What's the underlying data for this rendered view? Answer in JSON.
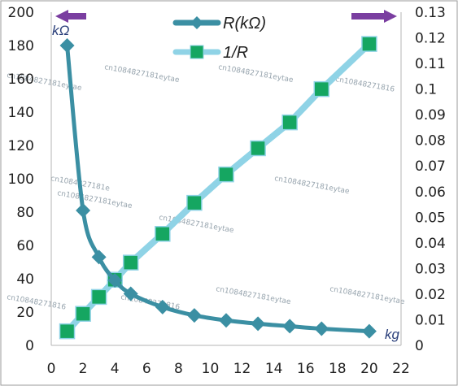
{
  "chart_data": {
    "type": "line",
    "x": [
      1,
      2,
      3,
      4,
      5,
      7,
      9,
      11,
      13,
      15,
      17,
      20
    ],
    "series": [
      {
        "name": "R(kΩ)",
        "axis": "left",
        "marker": "diamond",
        "color": "#3b8fa3",
        "values": [
          180,
          81,
          53,
          39,
          31,
          23,
          18,
          15,
          13,
          11.5,
          10,
          8.5
        ]
      },
      {
        "name": "1/R",
        "axis": "right",
        "marker": "square",
        "color": "#8fd3e6",
        "marker_color": "#15a661",
        "values": [
          0.0055,
          0.0123,
          0.0189,
          0.0256,
          0.0323,
          0.0435,
          0.0556,
          0.0667,
          0.0769,
          0.087,
          0.1,
          0.1176
        ]
      }
    ],
    "xlim": [
      0,
      22
    ],
    "xticks": [
      "0",
      "2",
      "4",
      "6",
      "8",
      "10",
      "12",
      "14",
      "16",
      "18",
      "20",
      "22"
    ],
    "ylim_left": [
      0,
      200
    ],
    "yticks_left": [
      "0",
      "20",
      "40",
      "60",
      "80",
      "100",
      "120",
      "140",
      "160",
      "180",
      "200"
    ],
    "ylim_right": [
      0,
      0.13
    ],
    "yticks_right": [
      "0",
      "0.01",
      "0.02",
      "0.03",
      "0.04",
      "0.05",
      "0.06",
      "0.07",
      "0.08",
      "0.09",
      "0.1",
      "0.11",
      "0.12",
      "0.13"
    ],
    "left_unit": "kΩ",
    "x_unit": "kg",
    "legend_position": "top-center",
    "grid": false,
    "arrow_color": "#7a3ea0",
    "watermarks": [
      "cn1084827181eytae",
      "cn1084827181eytae",
      "cn10848271816",
      "cn1084827181eytae",
      "cn1084827181e",
      "cn1084827181eytae",
      "cn1084827181eytae",
      "cn1084827181eytae",
      "cn1084827181eytae",
      "cn1084827181eytae",
      "cn10848271816",
      "cn10848271816"
    ]
  }
}
